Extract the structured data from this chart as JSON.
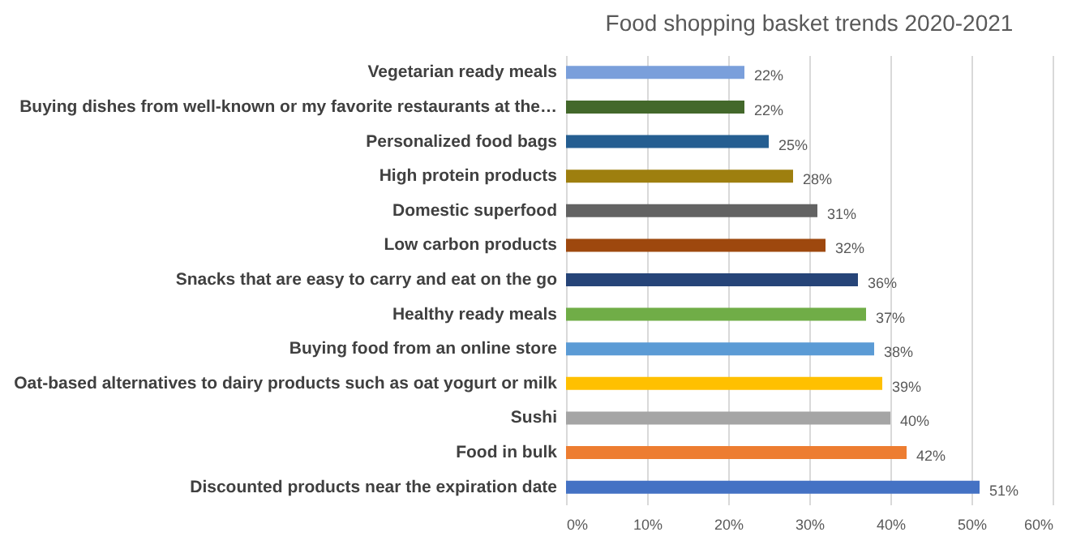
{
  "chart_data": {
    "type": "bar",
    "orientation": "horizontal",
    "title": "Food shopping basket trends 2020-2021",
    "categories": [
      "Vegetarian ready meals",
      "Buying dishes from well-known or my favorite restaurants at the…",
      "Personalized food bags",
      "High protein products",
      "Domestic superfood",
      "Low carbon products",
      "Snacks that are easy to carry and eat on the go",
      "Healthy ready meals",
      "Buying food from an online store",
      "Oat-based alternatives to dairy products such as oat yogurt or milk",
      "Sushi",
      "Food in bulk",
      "Discounted products near the expiration date"
    ],
    "values": [
      22,
      22,
      25,
      28,
      31,
      32,
      36,
      37,
      38,
      39,
      40,
      42,
      51
    ],
    "colors": [
      "#7a9fdb",
      "#43682b",
      "#255e91",
      "#9e7f0f",
      "#636363",
      "#9e480e",
      "#264478",
      "#70ad47",
      "#5b9bd5",
      "#ffc000",
      "#a5a5a5",
      "#ed7d31",
      "#4472c4"
    ],
    "value_labels": [
      "22%",
      "22%",
      "25%",
      "28%",
      "31%",
      "32%",
      "36%",
      "37%",
      "38%",
      "39%",
      "40%",
      "42%",
      "51%"
    ],
    "xlim": [
      0,
      60
    ],
    "xticks": [
      {
        "value": 0,
        "label": "0%"
      },
      {
        "value": 10,
        "label": "10%"
      },
      {
        "value": 20,
        "label": "20%"
      },
      {
        "value": 30,
        "label": "30%"
      },
      {
        "value": 40,
        "label": "40%"
      },
      {
        "value": 50,
        "label": "50%"
      },
      {
        "value": 60,
        "label": "60%"
      }
    ],
    "grid": "x"
  }
}
